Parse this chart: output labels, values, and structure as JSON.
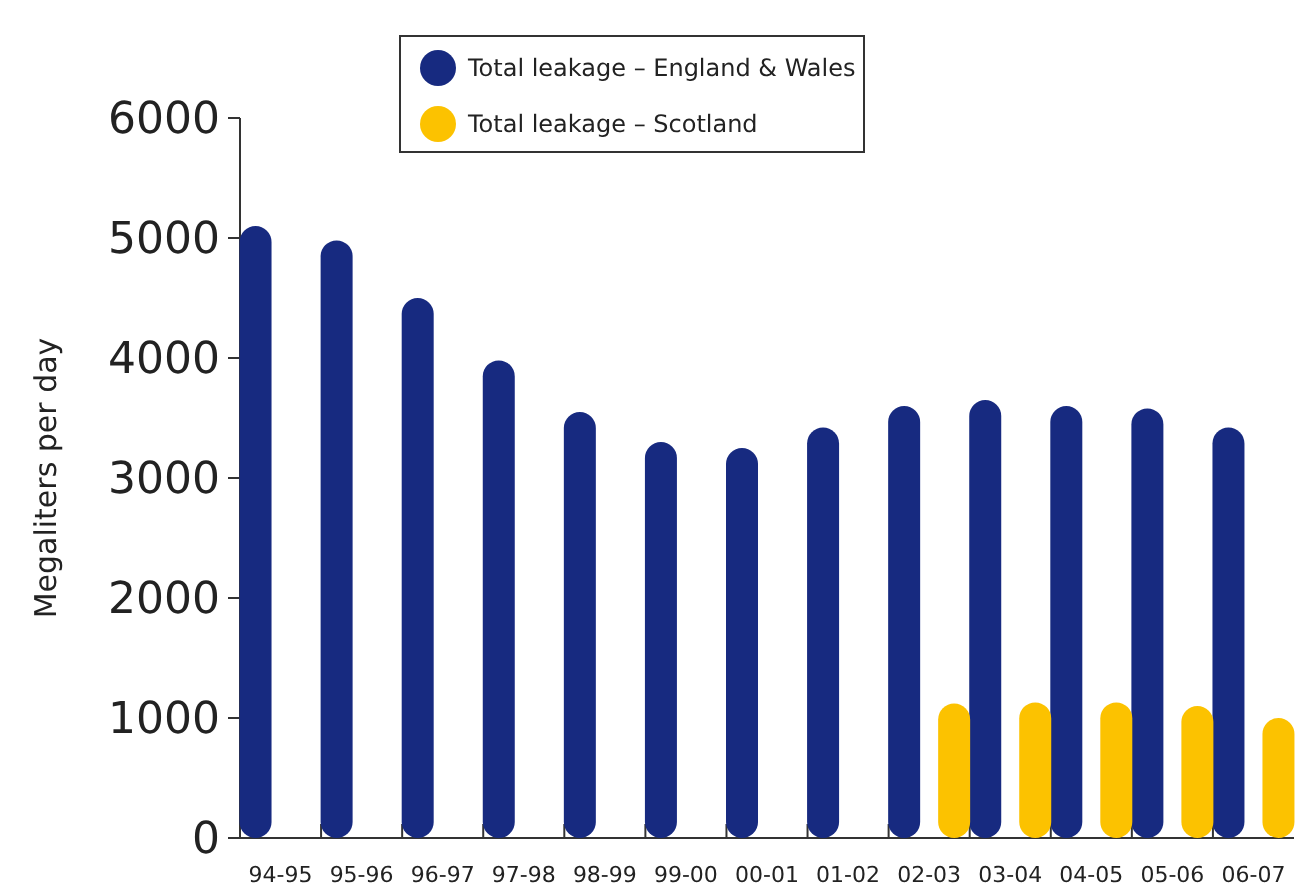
{
  "chart_data": {
    "type": "bar",
    "ylabel": "Megaliters per day",
    "categories": [
      "94-95",
      "95-96",
      "96-97",
      "97-98",
      "98-99",
      "99-00",
      "00-01",
      "01-02",
      "02-03",
      "03-04",
      "04-05",
      "05-06",
      "06-07"
    ],
    "series": [
      {
        "name": "Total leakage – England & Wales",
        "color": "#172a80",
        "values": [
          5100,
          4980,
          4500,
          3980,
          3550,
          3300,
          3250,
          3420,
          3600,
          3650,
          3600,
          3580,
          3420
        ]
      },
      {
        "name": "Total leakage – Scotland",
        "color": "#fcc200",
        "values": [
          null,
          null,
          null,
          null,
          null,
          null,
          null,
          null,
          1120,
          1130,
          1130,
          1100,
          1000
        ]
      }
    ],
    "ylim": [
      0,
      6000
    ],
    "yticks": [
      0,
      1000,
      2000,
      3000,
      4000,
      5000,
      6000
    ],
    "grid": false,
    "legend": "top"
  }
}
